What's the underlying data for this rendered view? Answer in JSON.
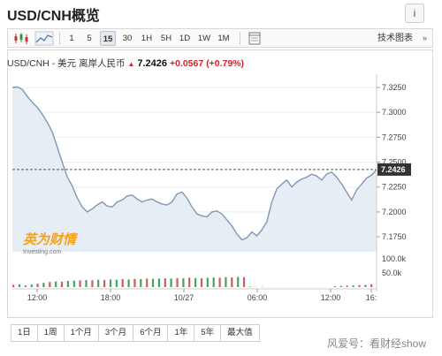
{
  "header": {
    "title": "USD/CNH概览",
    "info_label": "i"
  },
  "toolbar": {
    "chart_types": [
      "candlestick-icon",
      "area-icon"
    ],
    "intervals": [
      {
        "label": "1",
        "active": false
      },
      {
        "label": "5",
        "active": false
      },
      {
        "label": "15",
        "active": true
      },
      {
        "label": "30",
        "active": false
      },
      {
        "label": "1H",
        "active": false
      },
      {
        "label": "5H",
        "active": false
      },
      {
        "label": "1D",
        "active": false
      },
      {
        "label": "1W",
        "active": false
      },
      {
        "label": "1M",
        "active": false
      }
    ],
    "calendar_icon": "calendar-icon",
    "tech_chart_label": "技术图表",
    "tech_chart_caret": "»"
  },
  "quote": {
    "pair_label": "USD/CNH - 美元 离岸人民币",
    "direction": "up",
    "price": "7.2426",
    "change": "+0.0567",
    "change_pct": "(+0.79%)",
    "up_color": "#d91e2a"
  },
  "chart_data": {
    "type": "area",
    "series": [
      {
        "values": [
          7.325,
          7.3255,
          7.323,
          7.316,
          7.31,
          7.305,
          7.298,
          7.29,
          7.28,
          7.265,
          7.25,
          7.235,
          7.226,
          7.214,
          7.205,
          7.2,
          7.203,
          7.207,
          7.21,
          7.206,
          7.205,
          7.21,
          7.212,
          7.216,
          7.217,
          7.213,
          7.21,
          7.212,
          7.213,
          7.21,
          7.208,
          7.207,
          7.21,
          7.218,
          7.22,
          7.214,
          7.205,
          7.198,
          7.196,
          7.195,
          7.2,
          7.201,
          7.198,
          7.192,
          7.186,
          7.178,
          7.172,
          7.174,
          7.18,
          7.176,
          7.182,
          7.19,
          7.21,
          7.223,
          7.228,
          7.232,
          7.225,
          7.23,
          7.233,
          7.235,
          7.238,
          7.236,
          7.232,
          7.238,
          7.24,
          7.235,
          7.228,
          7.22,
          7.212,
          7.222,
          7.228,
          7.234,
          7.237,
          7.2426
        ]
      }
    ],
    "price_axis_ticks": [
      "7.3250",
      "7.3000",
      "7.2750",
      "7.2500",
      "7.2250",
      "7.2000",
      "7.1750"
    ],
    "ylim": [
      7.16,
      7.333
    ],
    "current_price_label": "7.2426",
    "current_price": 7.2426,
    "volume": {
      "values": [
        8,
        10,
        6,
        9,
        12,
        15,
        18,
        20,
        19,
        22,
        23,
        24,
        25,
        24,
        26,
        25,
        27,
        26,
        28,
        27,
        29,
        28,
        30,
        29,
        30,
        31,
        30,
        32,
        31,
        33,
        32,
        31,
        33,
        34,
        33,
        35,
        34,
        36,
        35,
        2,
        1,
        1,
        0,
        0,
        0,
        0,
        0,
        0,
        0,
        0,
        0,
        0,
        0,
        3,
        4,
        5,
        6,
        7,
        8,
        10
      ],
      "colors": [
        "r",
        "g",
        "r",
        "g",
        "r",
        "g",
        "r",
        "g",
        "r",
        "g",
        "g",
        "r",
        "g",
        "r",
        "g",
        "r",
        "g",
        "g",
        "r",
        "g",
        "r",
        "g",
        "r",
        "g",
        "g",
        "r",
        "g",
        "r",
        "g",
        "r",
        "g",
        "r",
        "g",
        "g",
        "r",
        "g",
        "r",
        "g",
        "r",
        "g",
        "g",
        "g",
        "g",
        "g",
        "g",
        "g",
        "g",
        "g",
        "g",
        "g",
        "g",
        "g",
        "g",
        "r",
        "g",
        "r",
        "g",
        "r",
        "g",
        "r"
      ],
      "ticks": [
        "100.0k",
        "50.0k"
      ],
      "max": 100
    },
    "x_ticks": [
      "12:00",
      "18:00",
      "10/27",
      "06:00",
      "12:00",
      "16:"
    ],
    "logo_text": "英为财情",
    "logo_sub": "Investing.com"
  },
  "ranges": [
    "1日",
    "1周",
    "1个月",
    "3个月",
    "6个月",
    "1年",
    "5年",
    "最大值"
  ],
  "watermark": "风爱号：看财经show",
  "colors": {
    "line": "#7f98b5",
    "fill": "#e6edf5",
    "up_volume": "#d15a5a",
    "down_volume": "#4a9e6a"
  }
}
